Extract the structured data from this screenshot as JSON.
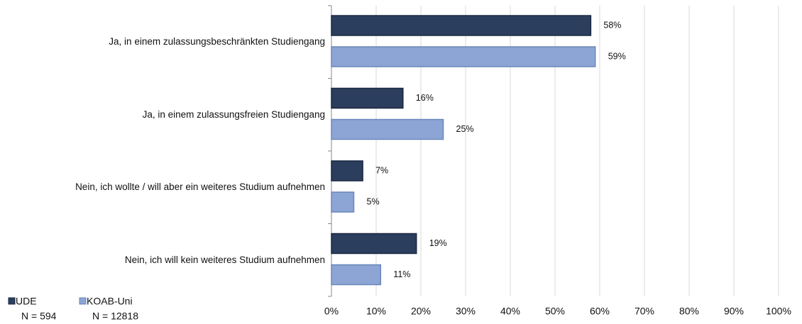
{
  "chart_data": {
    "type": "bar",
    "categories": [
      "Ja, in einem zulassungsbeschränkten Studiengang",
      "Ja, in einem zulassungsfreien Studiengang",
      "Nein, ich wollte / will aber ein weiteres Studium aufnehmen",
      "Nein, ich will kein weiteres Studium aufnehmen"
    ],
    "series": [
      {
        "name": "UDE",
        "sample": "N = 594",
        "color": "#2c3e5e",
        "values": [
          58,
          16,
          7,
          19
        ],
        "value_labels": [
          "58%",
          "16%",
          "7%",
          "19%"
        ]
      },
      {
        "name": "KOAB-Uni",
        "sample": "N = 12818",
        "color": "#8ca5d5",
        "values": [
          59,
          25,
          5,
          11
        ],
        "value_labels": [
          "59%",
          "25%",
          "5%",
          "11%"
        ]
      }
    ],
    "xlim": [
      0,
      100
    ],
    "xticks": [
      {
        "value": 0,
        "label": "0%"
      },
      {
        "value": 10,
        "label": "10%"
      },
      {
        "value": 20,
        "label": "20%"
      },
      {
        "value": 30,
        "label": "30%"
      },
      {
        "value": 40,
        "label": "40%"
      },
      {
        "value": 50,
        "label": "50%"
      },
      {
        "value": 60,
        "label": "60%"
      },
      {
        "value": 70,
        "label": "70%"
      },
      {
        "value": 80,
        "label": "80%"
      },
      {
        "value": 90,
        "label": "90%"
      },
      {
        "value": 100,
        "label": "100%"
      }
    ],
    "grid": true,
    "legend": "bottom-left"
  }
}
